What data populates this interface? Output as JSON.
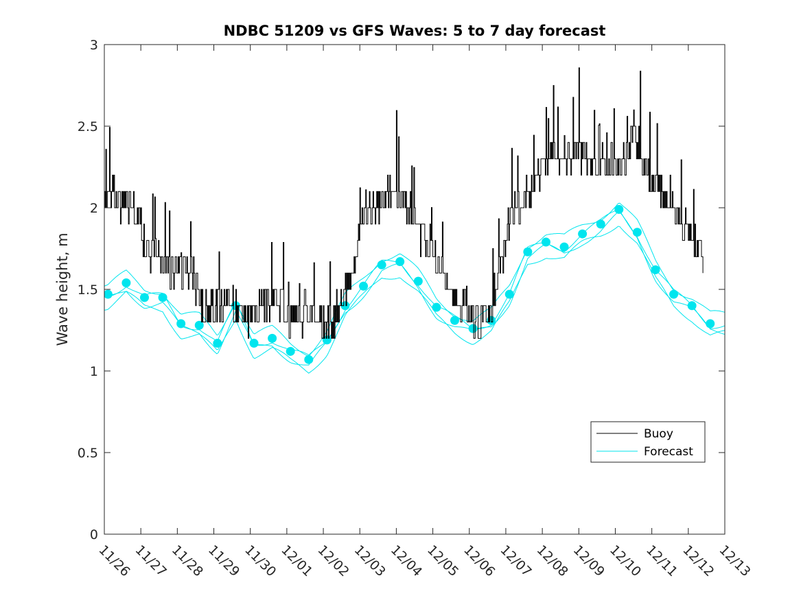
{
  "chart_data": {
    "type": "line",
    "title": "NDBC 51209 vs GFS Waves: 5 to 7 day forecast",
    "xlabel": "",
    "ylabel": "Wave height, m",
    "xlim": [
      0,
      17
    ],
    "ylim": [
      0,
      3
    ],
    "x_tick_labels": [
      "11/26",
      "11/27",
      "11/28",
      "11/29",
      "11/30",
      "12/01",
      "12/02",
      "12/03",
      "12/04",
      "12/05",
      "12/06",
      "12/07",
      "12/08",
      "12/09",
      "12/10",
      "12/11",
      "12/12",
      "12/13"
    ],
    "y_ticks": [
      0,
      0.5,
      1,
      1.5,
      2,
      2.5,
      3
    ],
    "y_tick_labels": [
      "0",
      "0.5",
      "1",
      "1.5",
      "2",
      "2.5",
      "3"
    ],
    "legend": {
      "position": "bottom-right",
      "entries": [
        "Buoy",
        "Forecast"
      ]
    },
    "colors": {
      "buoy": "#000000",
      "forecast": "#00e5ee",
      "axes": "#262626"
    },
    "series": [
      {
        "name": "Buoy",
        "x": [
          0,
          0.25,
          0.5,
          0.75,
          1,
          1.25,
          1.5,
          1.75,
          2,
          2.25,
          2.5,
          2.75,
          3,
          3.25,
          3.5,
          3.75,
          4,
          4.25,
          4.5,
          4.75,
          5,
          5.25,
          5.5,
          5.75,
          6,
          6.25,
          6.5,
          6.75,
          7,
          7.25,
          7.5,
          7.75,
          8,
          8.25,
          8.5,
          8.75,
          9,
          9.25,
          9.5,
          9.75,
          10,
          10.25,
          10.5,
          10.75,
          11,
          11.25,
          11.5,
          11.75,
          12,
          12.25,
          12.5,
          12.75,
          13,
          13.25,
          13.5,
          13.75,
          14,
          14.25,
          14.5,
          14.75,
          15,
          15.25,
          15.5,
          15.75,
          16,
          16.25,
          16.4
        ],
        "values": [
          2.0,
          2.1,
          2.0,
          2.05,
          1.85,
          1.75,
          1.7,
          1.65,
          1.6,
          1.62,
          1.55,
          1.35,
          1.35,
          1.4,
          1.38,
          1.35,
          1.35,
          1.4,
          1.45,
          1.4,
          1.35,
          1.3,
          1.38,
          1.35,
          1.3,
          1.3,
          1.4,
          1.6,
          1.85,
          2.0,
          2.0,
          2.1,
          2.1,
          2.05,
          1.9,
          1.8,
          1.75,
          1.6,
          1.5,
          1.4,
          1.35,
          1.3,
          1.35,
          1.5,
          1.85,
          2.0,
          2.05,
          2.1,
          2.25,
          2.3,
          2.3,
          2.3,
          2.35,
          2.3,
          2.3,
          2.3,
          2.25,
          2.3,
          2.5,
          2.3,
          2.15,
          2.1,
          2.05,
          1.95,
          1.85,
          1.75,
          1.7
        ]
      },
      {
        "name": "Forecast",
        "x": [
          0.1,
          0.6,
          1.1,
          1.6,
          2.1,
          2.6,
          3.1,
          3.6,
          4.1,
          4.6,
          5.1,
          5.6,
          6.1,
          6.6,
          7.1,
          7.6,
          8.1,
          8.6,
          9.1,
          9.6,
          10.1,
          10.6,
          11.1,
          11.6,
          12.1,
          12.6,
          13.1,
          13.6,
          14.1,
          14.6,
          15.1,
          15.6,
          16.1,
          16.6
        ],
        "values": [
          1.47,
          1.54,
          1.45,
          1.45,
          1.29,
          1.28,
          1.17,
          1.4,
          1.17,
          1.2,
          1.12,
          1.07,
          1.19,
          1.4,
          1.52,
          1.65,
          1.67,
          1.55,
          1.39,
          1.31,
          1.26,
          1.31,
          1.47,
          1.73,
          1.79,
          1.76,
          1.84,
          1.9,
          1.99,
          1.85,
          1.62,
          1.47,
          1.4,
          1.29
        ]
      }
    ]
  }
}
